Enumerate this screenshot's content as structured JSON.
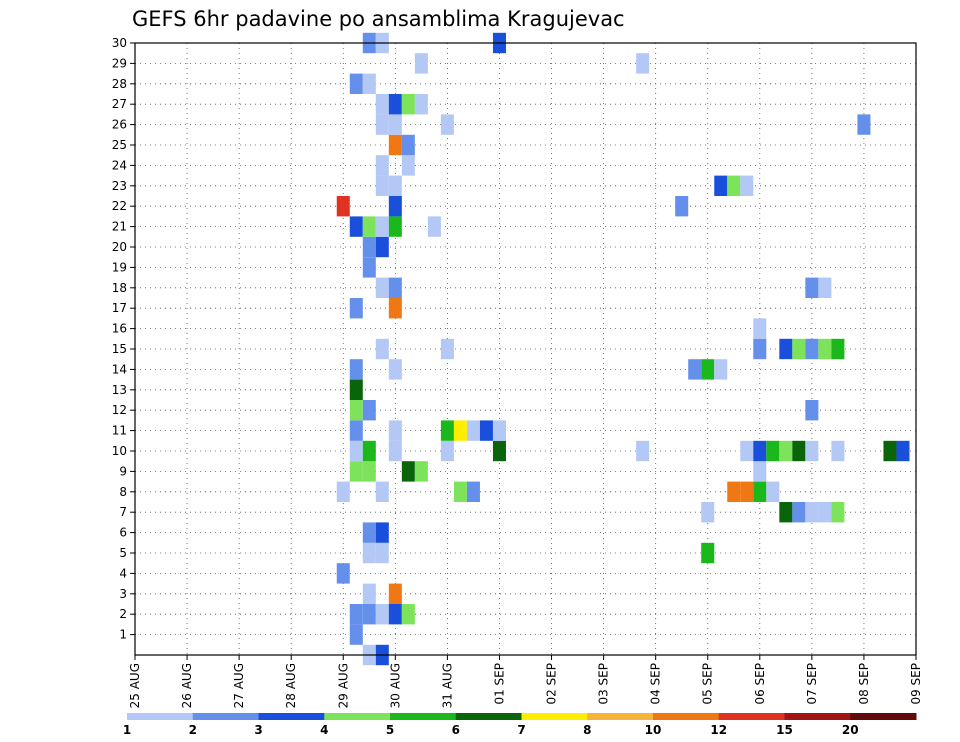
{
  "chart_data": {
    "type": "heatmap",
    "title": "GEFS 6hr padavine po ansamblima Kragujevac",
    "xlabel": "",
    "ylabel": "",
    "grid": true,
    "x_ticks": [
      "25 AUG",
      "26 AUG",
      "27 AUG",
      "28 AUG",
      "29 AUG",
      "30 AUG",
      "31 AUG",
      "01 SEP",
      "02 SEP",
      "03 SEP",
      "04 SEP",
      "05 SEP",
      "06 SEP",
      "07 SEP",
      "08 SEP",
      "09 SEP"
    ],
    "y_ticks": [
      "1",
      "2",
      "3",
      "4",
      "5",
      "6",
      "7",
      "8",
      "9",
      "10",
      "11",
      "12",
      "13",
      "14",
      "15",
      "16",
      "17",
      "18",
      "19",
      "20",
      "21",
      "22",
      "23",
      "24",
      "25",
      "26",
      "27",
      "28",
      "29",
      "30"
    ],
    "x_range_days": [
      0,
      15
    ],
    "y_range": [
      0,
      30
    ],
    "colorbar": {
      "levels": [
        "1",
        "2",
        "3",
        "4",
        "5",
        "6",
        "7",
        "8",
        "10",
        "12",
        "15",
        "20"
      ],
      "colors": [
        "#b4c8f5",
        "#6490ec",
        "#1a4fdc",
        "#7de35a",
        "#1ab81a",
        "#0a640a",
        "#ffee00",
        "#f5b43c",
        "#f07814",
        "#e03220",
        "#a01414",
        "#640a0a"
      ]
    },
    "cells": [
      {
        "x": 4.25,
        "m": 1,
        "v": 2
      },
      {
        "x": 4.25,
        "m": 2,
        "v": 2
      },
      {
        "x": 4.5,
        "m": 2,
        "v": 2
      },
      {
        "x": 4.75,
        "m": 2,
        "v": 1
      },
      {
        "x": 5.0,
        "m": 2,
        "v": 3
      },
      {
        "x": 5.25,
        "m": 2,
        "v": 4
      },
      {
        "x": 4.5,
        "m": 3,
        "v": 1
      },
      {
        "x": 5.0,
        "m": 3,
        "v": 10
      },
      {
        "x": 4.0,
        "m": 4,
        "v": 2
      },
      {
        "x": 4.5,
        "m": 5,
        "v": 1
      },
      {
        "x": 4.75,
        "m": 5,
        "v": 1
      },
      {
        "x": 11.0,
        "m": 5,
        "v": 5
      },
      {
        "x": 4.5,
        "m": 6,
        "v": 2
      },
      {
        "x": 4.75,
        "m": 6,
        "v": 3
      },
      {
        "x": 11.0,
        "m": 7,
        "v": 1
      },
      {
        "x": 12.5,
        "m": 7,
        "v": 6
      },
      {
        "x": 12.75,
        "m": 7,
        "v": 2
      },
      {
        "x": 13.0,
        "m": 7,
        "v": 1
      },
      {
        "x": 13.25,
        "m": 7,
        "v": 1
      },
      {
        "x": 13.5,
        "m": 7,
        "v": 4
      },
      {
        "x": 4.0,
        "m": 8,
        "v": 1
      },
      {
        "x": 4.75,
        "m": 8,
        "v": 1
      },
      {
        "x": 6.25,
        "m": 8,
        "v": 4
      },
      {
        "x": 6.5,
        "m": 8,
        "v": 2
      },
      {
        "x": 11.5,
        "m": 8,
        "v": 10
      },
      {
        "x": 11.75,
        "m": 8,
        "v": 10
      },
      {
        "x": 12.0,
        "m": 8,
        "v": 5
      },
      {
        "x": 12.25,
        "m": 8,
        "v": 1
      },
      {
        "x": 4.25,
        "m": 9,
        "v": 4
      },
      {
        "x": 4.5,
        "m": 9,
        "v": 4
      },
      {
        "x": 5.25,
        "m": 9,
        "v": 6
      },
      {
        "x": 5.5,
        "m": 9,
        "v": 4
      },
      {
        "x": 12.0,
        "m": 9,
        "v": 1
      },
      {
        "x": 4.25,
        "m": 10,
        "v": 1
      },
      {
        "x": 4.5,
        "m": 10,
        "v": 5
      },
      {
        "x": 5.0,
        "m": 10,
        "v": 1
      },
      {
        "x": 6.0,
        "m": 10,
        "v": 1
      },
      {
        "x": 7.0,
        "m": 10,
        "v": 6
      },
      {
        "x": 9.75,
        "m": 10,
        "v": 1
      },
      {
        "x": 11.75,
        "m": 10,
        "v": 1
      },
      {
        "x": 12.0,
        "m": 10,
        "v": 3
      },
      {
        "x": 12.25,
        "m": 10,
        "v": 5
      },
      {
        "x": 12.5,
        "m": 10,
        "v": 4
      },
      {
        "x": 12.75,
        "m": 10,
        "v": 6
      },
      {
        "x": 13.0,
        "m": 10,
        "v": 1
      },
      {
        "x": 13.5,
        "m": 10,
        "v": 1
      },
      {
        "x": 14.5,
        "m": 10,
        "v": 6
      },
      {
        "x": 14.75,
        "m": 10,
        "v": 3
      },
      {
        "x": 4.25,
        "m": 11,
        "v": 2
      },
      {
        "x": 5.0,
        "m": 11,
        "v": 1
      },
      {
        "x": 6.0,
        "m": 11,
        "v": 5
      },
      {
        "x": 6.25,
        "m": 11,
        "v": 7
      },
      {
        "x": 6.5,
        "m": 11,
        "v": 1
      },
      {
        "x": 6.75,
        "m": 11,
        "v": 3
      },
      {
        "x": 7.0,
        "m": 11,
        "v": 1
      },
      {
        "x": 4.25,
        "m": 12,
        "v": 4
      },
      {
        "x": 4.5,
        "m": 12,
        "v": 2
      },
      {
        "x": 13.0,
        "m": 12,
        "v": 2
      },
      {
        "x": 4.25,
        "m": 13,
        "v": 6
      },
      {
        "x": 4.25,
        "m": 14,
        "v": 2
      },
      {
        "x": 5.0,
        "m": 14,
        "v": 1
      },
      {
        "x": 10.75,
        "m": 14,
        "v": 2
      },
      {
        "x": 11.0,
        "m": 14,
        "v": 5
      },
      {
        "x": 11.25,
        "m": 14,
        "v": 1
      },
      {
        "x": 4.75,
        "m": 15,
        "v": 1
      },
      {
        "x": 6.0,
        "m": 15,
        "v": 1
      },
      {
        "x": 12.0,
        "m": 15,
        "v": 2
      },
      {
        "x": 12.5,
        "m": 15,
        "v": 3
      },
      {
        "x": 12.75,
        "m": 15,
        "v": 4
      },
      {
        "x": 13.0,
        "m": 15,
        "v": 2
      },
      {
        "x": 13.25,
        "m": 15,
        "v": 4
      },
      {
        "x": 13.5,
        "m": 15,
        "v": 5
      },
      {
        "x": 12.0,
        "m": 16,
        "v": 1
      },
      {
        "x": 4.25,
        "m": 17,
        "v": 2
      },
      {
        "x": 5.0,
        "m": 17,
        "v": 10
      },
      {
        "x": 4.75,
        "m": 18,
        "v": 1
      },
      {
        "x": 5.0,
        "m": 18,
        "v": 2
      },
      {
        "x": 13.0,
        "m": 18,
        "v": 2
      },
      {
        "x": 13.25,
        "m": 18,
        "v": 1
      },
      {
        "x": 4.5,
        "m": 19,
        "v": 2
      },
      {
        "x": 4.5,
        "m": 20,
        "v": 2
      },
      {
        "x": 4.75,
        "m": 20,
        "v": 3
      },
      {
        "x": 4.25,
        "m": 21,
        "v": 3
      },
      {
        "x": 4.5,
        "m": 21,
        "v": 4
      },
      {
        "x": 4.75,
        "m": 21,
        "v": 1
      },
      {
        "x": 5.0,
        "m": 21,
        "v": 5
      },
      {
        "x": 5.75,
        "m": 21,
        "v": 1
      },
      {
        "x": 4.0,
        "m": 22,
        "v": 12
      },
      {
        "x": 5.0,
        "m": 22,
        "v": 3
      },
      {
        "x": 10.5,
        "m": 22,
        "v": 2
      },
      {
        "x": 4.75,
        "m": 23,
        "v": 1
      },
      {
        "x": 5.0,
        "m": 23,
        "v": 1
      },
      {
        "x": 11.25,
        "m": 23,
        "v": 3
      },
      {
        "x": 11.5,
        "m": 23,
        "v": 4
      },
      {
        "x": 11.75,
        "m": 23,
        "v": 1
      },
      {
        "x": 4.75,
        "m": 24,
        "v": 1
      },
      {
        "x": 5.25,
        "m": 24,
        "v": 1
      },
      {
        "x": 5.0,
        "m": 25,
        "v": 10
      },
      {
        "x": 5.25,
        "m": 25,
        "v": 2
      },
      {
        "x": 4.75,
        "m": 26,
        "v": 1
      },
      {
        "x": 5.0,
        "m": 26,
        "v": 1
      },
      {
        "x": 6.0,
        "m": 26,
        "v": 1
      },
      {
        "x": 14.0,
        "m": 26,
        "v": 2
      },
      {
        "x": 4.75,
        "m": 27,
        "v": 1
      },
      {
        "x": 5.0,
        "m": 27,
        "v": 3
      },
      {
        "x": 5.25,
        "m": 27,
        "v": 4
      },
      {
        "x": 5.5,
        "m": 27,
        "v": 1
      },
      {
        "x": 4.25,
        "m": 28,
        "v": 2
      },
      {
        "x": 4.5,
        "m": 28,
        "v": 1
      },
      {
        "x": 5.5,
        "m": 29,
        "v": 1
      },
      {
        "x": 9.75,
        "m": 29,
        "v": 1
      },
      {
        "x": 4.5,
        "m": 30,
        "v": 2
      },
      {
        "x": 4.75,
        "m": 30,
        "v": 1
      },
      {
        "x": 7.0,
        "m": 30,
        "v": 3
      },
      {
        "x": 4.5,
        "m": 0,
        "v": 1
      },
      {
        "x": 4.75,
        "m": 0,
        "v": 3
      }
    ]
  }
}
